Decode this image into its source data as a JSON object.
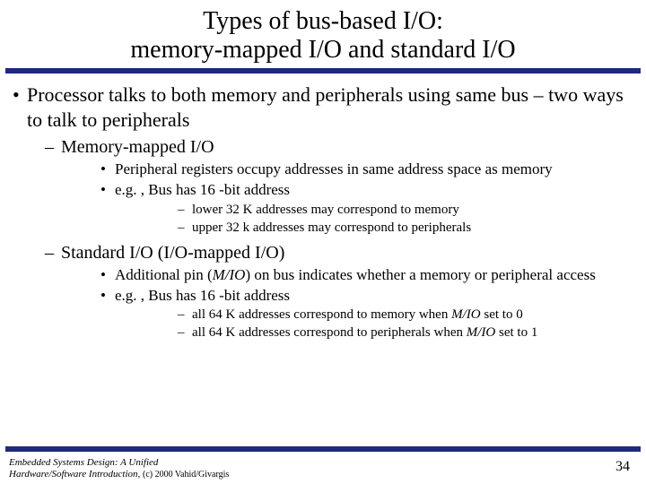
{
  "title_line1": "Types of bus-based I/O:",
  "title_line2": "memory-mapped I/O and standard I/O",
  "colors": {
    "bar": "#1e2a7a",
    "background": "#ffffff",
    "text": "#000000"
  },
  "bullets": {
    "b1": "Processor talks to both memory and peripherals using same bus – two ways to talk to peripherals",
    "b1a": "Memory-mapped I/O",
    "b1a1": "Peripheral registers occupy addresses in same address space as memory",
    "b1a2": "e.g. , Bus has 16 -bit address",
    "b1a2a": "lower 32 K addresses may correspond to memory",
    "b1a2b": "upper 32 k addresses may correspond to peripherals",
    "b1b": "Standard I/O (I/O-mapped I/O)",
    "b1b1_pre": "Additional pin (",
    "b1b1_pin": "M/IO",
    "b1b1_post": ") on bus indicates whether a memory or peripheral access",
    "b1b2": "e.g. , Bus has 16 -bit address",
    "b1b2a_pre": "all 64 K addresses correspond to memory when ",
    "b1b2a_pin": "M/IO",
    "b1b2a_post": " set to 0",
    "b1b2b_pre": "all 64 K addresses correspond to peripherals when ",
    "b1b2b_pin": "M/IO",
    "b1b2b_post": " set to 1"
  },
  "footer": {
    "book_line1": "Embedded Systems Design: A Unified",
    "book_line2_pre": "Hardware/Software Introduction, ",
    "book_line2_copy": "(c) 2000 Vahid/Givargis",
    "page": "34"
  }
}
